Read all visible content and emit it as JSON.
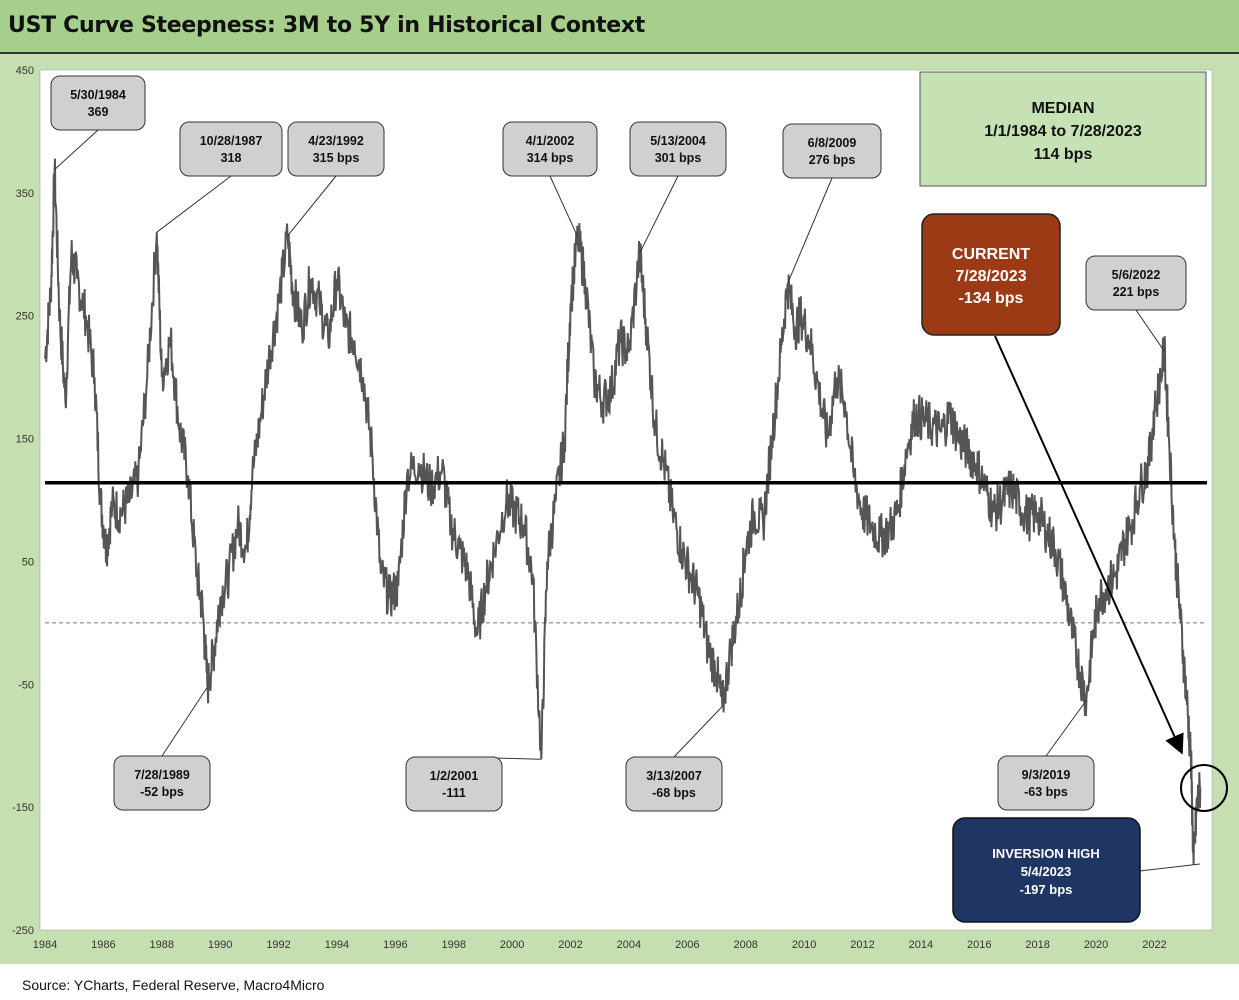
{
  "title": "UST Curve Steepness: 3M to 5Y in Historical Context",
  "source": "Source: YCharts, Federal Reserve, Macro4Micro",
  "colors": {
    "header_bg": "#a5cf8a",
    "frame_bg": "#c6dfb1",
    "plot_bg": "#ffffff",
    "series_line": "#555555",
    "median_line": "#000000",
    "median_box": "#c6e2b5",
    "current_box": "#9b3a14",
    "inversion_box": "#1f3564",
    "callout_box": "#d0d0d0"
  },
  "chart_data": {
    "type": "line",
    "title": "UST Curve Steepness: 3M to 5Y in Historical Context",
    "xlabel": "",
    "ylabel": "",
    "xlim": [
      1984,
      2023.8
    ],
    "ylim": [
      -250,
      450
    ],
    "yticks": [
      450,
      350,
      250,
      150,
      50,
      -50,
      -150,
      -250
    ],
    "xticks": [
      1984,
      1986,
      1988,
      1990,
      1992,
      1994,
      1996,
      1998,
      2000,
      2002,
      2004,
      2006,
      2008,
      2010,
      2012,
      2014,
      2016,
      2018,
      2020,
      2022
    ],
    "median": 114,
    "zero_line": 0,
    "grid": false,
    "series": [
      {
        "points": [
          [
            1984.0,
            215
          ],
          [
            1984.2,
            270
          ],
          [
            1984.33,
            369
          ],
          [
            1984.5,
            250
          ],
          [
            1984.7,
            180
          ],
          [
            1984.9,
            300
          ],
          [
            1985.1,
            280
          ],
          [
            1985.4,
            250
          ],
          [
            1985.7,
            200
          ],
          [
            1985.9,
            100
          ],
          [
            1986.1,
            60
          ],
          [
            1986.3,
            95
          ],
          [
            1986.6,
            90
          ],
          [
            1986.9,
            100
          ],
          [
            1987.2,
            120
          ],
          [
            1987.5,
            200
          ],
          [
            1987.83,
            318
          ],
          [
            1988.0,
            200
          ],
          [
            1988.3,
            230
          ],
          [
            1988.6,
            160
          ],
          [
            1988.9,
            120
          ],
          [
            1989.2,
            40
          ],
          [
            1989.4,
            10
          ],
          [
            1989.57,
            -52
          ],
          [
            1989.8,
            -20
          ],
          [
            1990.0,
            20
          ],
          [
            1990.3,
            40
          ],
          [
            1990.6,
            80
          ],
          [
            1990.9,
            60
          ],
          [
            1991.1,
            120
          ],
          [
            1991.4,
            170
          ],
          [
            1991.7,
            220
          ],
          [
            1992.0,
            260
          ],
          [
            1992.31,
            315
          ],
          [
            1992.5,
            270
          ],
          [
            1992.8,
            240
          ],
          [
            1993.1,
            280
          ],
          [
            1993.4,
            260
          ],
          [
            1993.7,
            230
          ],
          [
            1994.0,
            280
          ],
          [
            1994.3,
            240
          ],
          [
            1994.6,
            230
          ],
          [
            1994.9,
            200
          ],
          [
            1995.2,
            140
          ],
          [
            1995.5,
            40
          ],
          [
            1995.8,
            20
          ],
          [
            1996.1,
            30
          ],
          [
            1996.4,
            120
          ],
          [
            1996.8,
            130
          ],
          [
            1997.2,
            110
          ],
          [
            1997.6,
            125
          ],
          [
            1997.9,
            80
          ],
          [
            1998.2,
            60
          ],
          [
            1998.5,
            40
          ],
          [
            1998.8,
            -10
          ],
          [
            1999.1,
            30
          ],
          [
            1999.4,
            60
          ],
          [
            1999.8,
            100
          ],
          [
            2000.1,
            90
          ],
          [
            2000.4,
            80
          ],
          [
            2000.7,
            40
          ],
          [
            2001.0,
            -111
          ],
          [
            2001.2,
            50
          ],
          [
            2001.5,
            100
          ],
          [
            2001.8,
            150
          ],
          [
            2002.0,
            260
          ],
          [
            2002.25,
            314
          ],
          [
            2002.5,
            280
          ],
          [
            2002.8,
            200
          ],
          [
            2003.1,
            180
          ],
          [
            2003.4,
            190
          ],
          [
            2003.7,
            230
          ],
          [
            2004.0,
            220
          ],
          [
            2004.37,
            301
          ],
          [
            2004.6,
            240
          ],
          [
            2004.9,
            160
          ],
          [
            2005.2,
            130
          ],
          [
            2005.5,
            90
          ],
          [
            2005.8,
            60
          ],
          [
            2006.1,
            40
          ],
          [
            2006.4,
            20
          ],
          [
            2006.7,
            -20
          ],
          [
            2007.0,
            -40
          ],
          [
            2007.2,
            -68
          ],
          [
            2007.5,
            -20
          ],
          [
            2007.8,
            20
          ],
          [
            2008.0,
            60
          ],
          [
            2008.3,
            90
          ],
          [
            2008.6,
            80
          ],
          [
            2008.9,
            150
          ],
          [
            2009.2,
            220
          ],
          [
            2009.43,
            276
          ],
          [
            2009.7,
            240
          ],
          [
            2009.9,
            250
          ],
          [
            2010.2,
            230
          ],
          [
            2010.5,
            190
          ],
          [
            2010.8,
            150
          ],
          [
            2011.1,
            200
          ],
          [
            2011.4,
            180
          ],
          [
            2011.7,
            120
          ],
          [
            2012.0,
            90
          ],
          [
            2012.3,
            80
          ],
          [
            2012.6,
            70
          ],
          [
            2012.9,
            75
          ],
          [
            2013.2,
            90
          ],
          [
            2013.5,
            140
          ],
          [
            2013.8,
            170
          ],
          [
            2014.1,
            165
          ],
          [
            2014.4,
            160
          ],
          [
            2014.7,
            155
          ],
          [
            2015.0,
            170
          ],
          [
            2015.3,
            150
          ],
          [
            2015.6,
            140
          ],
          [
            2015.9,
            130
          ],
          [
            2016.2,
            110
          ],
          [
            2016.5,
            90
          ],
          [
            2016.8,
            100
          ],
          [
            2017.1,
            110
          ],
          [
            2017.4,
            95
          ],
          [
            2017.7,
            85
          ],
          [
            2018.0,
            90
          ],
          [
            2018.3,
            75
          ],
          [
            2018.6,
            60
          ],
          [
            2018.9,
            30
          ],
          [
            2019.2,
            -10
          ],
          [
            2019.45,
            -40
          ],
          [
            2019.67,
            -63
          ],
          [
            2019.9,
            -10
          ],
          [
            2020.1,
            20
          ],
          [
            2020.4,
            30
          ],
          [
            2020.7,
            40
          ],
          [
            2020.9,
            60
          ],
          [
            2021.2,
            80
          ],
          [
            2021.5,
            110
          ],
          [
            2021.8,
            130
          ],
          [
            2022.0,
            170
          ],
          [
            2022.34,
            221
          ],
          [
            2022.5,
            150
          ],
          [
            2022.7,
            60
          ],
          [
            2022.9,
            0
          ],
          [
            2023.1,
            -60
          ],
          [
            2023.25,
            -110
          ],
          [
            2023.34,
            -197
          ],
          [
            2023.45,
            -150
          ],
          [
            2023.57,
            -134
          ]
        ]
      }
    ],
    "annotations": [
      {
        "label": "5/30/1984",
        "value": "369"
      },
      {
        "label": "10/28/1987",
        "value": "318"
      },
      {
        "label": "4/23/1992",
        "value": "315 bps"
      },
      {
        "label": "4/1/2002",
        "value": "314 bps"
      },
      {
        "label": "5/13/2004",
        "value": "301 bps"
      },
      {
        "label": "6/8/2009",
        "value": "276 bps"
      },
      {
        "label": "5/6/2022",
        "value": "221 bps"
      },
      {
        "label": "7/28/1989",
        "value": "-52 bps"
      },
      {
        "label": "1/2/2001",
        "value": "-111"
      },
      {
        "label": "3/13/2007",
        "value": "-68 bps"
      },
      {
        "label": "9/3/2019",
        "value": "-63 bps"
      }
    ],
    "median_box": {
      "line1": "MEDIAN",
      "line2": "1/1/1984 to 7/28/2023",
      "line3": "114 bps"
    },
    "current_box": {
      "line1": "CURRENT",
      "line2": "7/28/2023",
      "line3": "-134 bps"
    },
    "inversion_box": {
      "line1": "INVERSION HIGH",
      "line2": "5/4/2023",
      "line3": "-197 bps"
    }
  }
}
